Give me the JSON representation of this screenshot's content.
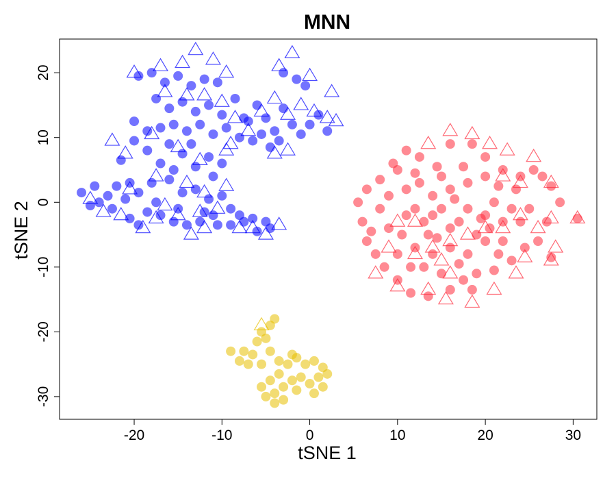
{
  "chart_data": {
    "type": "scatter",
    "title": "MNN",
    "xlabel": "tSNE 1",
    "ylabel": "tSNE 2",
    "xlim": [
      -28.5,
      32.7
    ],
    "ylim": [
      -33.5,
      25.2
    ],
    "xticks": [
      -20,
      -10,
      0,
      10,
      20,
      30
    ],
    "yticks": [
      20,
      10,
      0,
      -10,
      -20,
      -30
    ],
    "xtick_labels": [
      "-20",
      "-10",
      "0",
      "10",
      "20",
      "30"
    ],
    "ytick_labels": [
      "20",
      "10",
      "0",
      "-10",
      "-20",
      "-30"
    ],
    "grid": false,
    "legend": "none",
    "colors": {
      "blue": "#0000ff",
      "red": "#ff2a3a",
      "gold": "#e8c000"
    },
    "marker_shapes": [
      "circle",
      "triangle"
    ],
    "clusters": [
      {
        "color": "#0000ff",
        "circles": [
          [
            -26,
            1.5
          ],
          [
            -24.5,
            2.5
          ],
          [
            -23,
            1
          ],
          [
            -22.5,
            -1
          ],
          [
            -21,
            0.5
          ],
          [
            -20.5,
            -2.5
          ],
          [
            -19.5,
            -3.5
          ],
          [
            -18.5,
            -1.5
          ],
          [
            -17,
            -2
          ],
          [
            -15.5,
            -3
          ],
          [
            -14,
            -3.5
          ],
          [
            -12.5,
            -3
          ],
          [
            -11,
            -2
          ],
          [
            -9,
            -3.5
          ],
          [
            -7.5,
            -3
          ],
          [
            -6,
            -4.5
          ],
          [
            -4.5,
            -4
          ],
          [
            -19.5,
            1.5
          ],
          [
            -18,
            3
          ],
          [
            -16,
            3.5
          ],
          [
            -14.5,
            1.5
          ],
          [
            -13,
            2
          ],
          [
            -11.5,
            0.5
          ],
          [
            -10,
            1
          ],
          [
            -21.5,
            6.5
          ],
          [
            -20,
            9.5
          ],
          [
            -18.5,
            8
          ],
          [
            -17,
            6
          ],
          [
            -16,
            9
          ],
          [
            -14.5,
            7.5
          ],
          [
            -13,
            5.5
          ],
          [
            -11.5,
            7
          ],
          [
            -10,
            6
          ],
          [
            -19.5,
            19.5
          ],
          [
            -18,
            20
          ],
          [
            -16.5,
            18.5
          ],
          [
            -15,
            19.5
          ],
          [
            -13.5,
            18
          ],
          [
            -12,
            19
          ],
          [
            -10.5,
            18.5
          ],
          [
            -17.5,
            16
          ],
          [
            -16,
            14.5
          ],
          [
            -14.5,
            15.5
          ],
          [
            -13,
            14
          ],
          [
            -11.5,
            15
          ],
          [
            -10,
            13.5
          ],
          [
            -17,
            11.5
          ],
          [
            -15.5,
            12
          ],
          [
            -14,
            11
          ],
          [
            -12.5,
            12
          ],
          [
            -11,
            10.5
          ],
          [
            -9.5,
            11.5
          ],
          [
            -8,
            10
          ],
          [
            -7,
            12.5
          ],
          [
            -6,
            15
          ],
          [
            -5,
            13
          ],
          [
            -4,
            11
          ],
          [
            -3,
            14.5
          ],
          [
            -2,
            12
          ],
          [
            -1,
            10.5
          ],
          [
            0,
            12
          ],
          [
            1,
            13.5
          ],
          [
            2,
            11
          ],
          [
            -3,
            20
          ],
          [
            -1.5,
            19
          ],
          [
            -0.5,
            18
          ],
          [
            -8.5,
            16
          ],
          [
            -7.5,
            13
          ],
          [
            -6.5,
            9.5
          ],
          [
            -5.5,
            10.5
          ],
          [
            -4.5,
            8.5
          ],
          [
            -3.5,
            9.5
          ],
          [
            -9,
            -1
          ],
          [
            -8,
            -2
          ],
          [
            -24,
            0
          ],
          [
            -22,
            2.5
          ],
          [
            -20.5,
            3
          ],
          [
            -25,
            -0.5
          ],
          [
            -17.5,
            0
          ],
          [
            -15,
            -1
          ],
          [
            -12,
            -1.5
          ],
          [
            -10.5,
            -3.5
          ],
          [
            -6.5,
            -2.5
          ],
          [
            -5,
            -3
          ],
          [
            -13.5,
            9
          ],
          [
            -11,
            4
          ],
          [
            -15.5,
            5
          ],
          [
            -18.5,
            11
          ],
          [
            -20,
            12.5
          ]
        ],
        "triangles": [
          [
            -25,
            0.5
          ],
          [
            -23.5,
            -1.5
          ],
          [
            -21.5,
            -2
          ],
          [
            -19,
            -4
          ],
          [
            -17.5,
            -2.5
          ],
          [
            -15,
            -2
          ],
          [
            -13.5,
            -5
          ],
          [
            -12,
            -4
          ],
          [
            -10.5,
            -1
          ],
          [
            -8,
            -4
          ],
          [
            -6.5,
            -4
          ],
          [
            -5,
            -5
          ],
          [
            -3.5,
            -3.5
          ],
          [
            -20.5,
            2
          ],
          [
            -17.5,
            4
          ],
          [
            -14,
            3
          ],
          [
            -12,
            1.5
          ],
          [
            -9.5,
            2.5
          ],
          [
            -22.5,
            9.5
          ],
          [
            -21,
            7.5
          ],
          [
            -18,
            10.5
          ],
          [
            -15,
            8.5
          ],
          [
            -12.5,
            6.5
          ],
          [
            -9.5,
            8
          ],
          [
            -20,
            20
          ],
          [
            -17,
            21
          ],
          [
            -14.5,
            21.5
          ],
          [
            -13,
            23.5
          ],
          [
            -11,
            22
          ],
          [
            -9.5,
            20
          ],
          [
            -16.5,
            17
          ],
          [
            -14,
            16.5
          ],
          [
            -12,
            16.5
          ],
          [
            -10,
            15.5
          ],
          [
            -8.5,
            13
          ],
          [
            -7,
            11
          ],
          [
            -5.5,
            14
          ],
          [
            -4,
            16
          ],
          [
            -2.5,
            13.5
          ],
          [
            -1,
            15
          ],
          [
            0.5,
            14
          ],
          [
            2,
            13
          ],
          [
            3,
            12.5
          ],
          [
            -2,
            23
          ],
          [
            -3.5,
            21
          ],
          [
            0,
            19.5
          ],
          [
            2.5,
            17
          ],
          [
            -9,
            9
          ],
          [
            -4,
            7.5
          ],
          [
            -2.5,
            8
          ],
          [
            -12.5,
            -1.5
          ],
          [
            -16.5,
            -0.5
          ]
        ]
      },
      {
        "color": "#ff2a3a",
        "circles": [
          [
            10,
            5
          ],
          [
            11,
            8
          ],
          [
            12.5,
            7
          ],
          [
            14.5,
            5.5
          ],
          [
            16,
            9
          ],
          [
            18.5,
            9
          ],
          [
            20,
            7
          ],
          [
            22,
            5
          ],
          [
            24,
            4
          ],
          [
            25.5,
            5
          ],
          [
            26.5,
            4
          ],
          [
            27.5,
            2.5
          ],
          [
            28.5,
            0
          ],
          [
            27,
            -3
          ],
          [
            26,
            -6
          ],
          [
            24.5,
            -7
          ],
          [
            23,
            -9
          ],
          [
            21,
            -10.5
          ],
          [
            19,
            -11
          ],
          [
            17.5,
            -12
          ],
          [
            16,
            -13.5
          ],
          [
            13.5,
            -14.5
          ],
          [
            11.5,
            -14
          ],
          [
            10,
            -12
          ],
          [
            8.5,
            -10
          ],
          [
            7.5,
            -8
          ],
          [
            6.5,
            -6
          ],
          [
            6,
            -3
          ],
          [
            5.5,
            0
          ],
          [
            6.5,
            2
          ],
          [
            8,
            3.5
          ],
          [
            9.5,
            6
          ],
          [
            11,
            2
          ],
          [
            12,
            -1
          ],
          [
            13,
            -3
          ],
          [
            14,
            -2
          ],
          [
            15,
            -1
          ],
          [
            16,
            -4
          ],
          [
            17,
            -3
          ],
          [
            18,
            -1
          ],
          [
            19,
            -5
          ],
          [
            20,
            -2
          ],
          [
            21,
            0
          ],
          [
            22,
            -3
          ],
          [
            23,
            -1
          ],
          [
            12.5,
            3
          ],
          [
            14,
            1
          ],
          [
            16,
            2
          ],
          [
            18,
            3
          ],
          [
            20,
            4
          ],
          [
            10.5,
            -5
          ],
          [
            12,
            -7
          ],
          [
            14,
            -8
          ],
          [
            16,
            -7
          ],
          [
            18,
            -8
          ],
          [
            20,
            -6
          ],
          [
            22,
            -6
          ],
          [
            24,
            -3
          ],
          [
            25,
            -1
          ],
          [
            8,
            -1
          ],
          [
            9,
            -4
          ],
          [
            10,
            -8
          ],
          [
            13,
            -10
          ],
          [
            15,
            -11
          ],
          [
            17,
            -9.5
          ],
          [
            21.5,
            -8
          ],
          [
            23.5,
            2
          ],
          [
            30.5,
            -2.5
          ],
          [
            27.5,
            -8.5
          ],
          [
            12,
            4.5
          ],
          [
            15,
            4
          ],
          [
            17.5,
            5.5
          ],
          [
            9,
            1
          ],
          [
            11,
            -2
          ],
          [
            13.5,
            -5
          ],
          [
            19.5,
            -2.5
          ],
          [
            21.5,
            2.5
          ],
          [
            14.5,
            -5.5
          ],
          [
            16.5,
            0.5
          ],
          [
            11.5,
            -10
          ],
          [
            18.5,
            -13.5
          ],
          [
            20.5,
            -4
          ],
          [
            7,
            -4.5
          ]
        ],
        "triangles": [
          [
            13.5,
            9
          ],
          [
            16,
            11
          ],
          [
            18.5,
            10.5
          ],
          [
            20.5,
            9
          ],
          [
            22.5,
            8
          ],
          [
            25.5,
            7
          ],
          [
            27.5,
            3
          ],
          [
            27.5,
            -2.5
          ],
          [
            28,
            -7
          ],
          [
            27.5,
            -9
          ],
          [
            24.5,
            -8.5
          ],
          [
            23.5,
            -11
          ],
          [
            21,
            -13.5
          ],
          [
            18.5,
            -15.5
          ],
          [
            15.5,
            -15
          ],
          [
            13.5,
            -13.5
          ],
          [
            10,
            -13
          ],
          [
            7.5,
            -11
          ],
          [
            15,
            -9
          ],
          [
            12,
            -8
          ],
          [
            14,
            -7
          ],
          [
            16,
            -6
          ],
          [
            18,
            -5
          ],
          [
            20,
            -4
          ],
          [
            22,
            -4
          ],
          [
            24,
            -2
          ],
          [
            10,
            -3
          ],
          [
            12,
            -3
          ],
          [
            26,
            -4
          ],
          [
            30.5,
            -2.5
          ],
          [
            24,
            3
          ],
          [
            22,
            4
          ],
          [
            9,
            -7
          ],
          [
            16,
            -11
          ]
        ]
      },
      {
        "color": "#e8c000",
        "circles": [
          [
            -9,
            -23
          ],
          [
            -8,
            -24.5
          ],
          [
            -7,
            -25
          ],
          [
            -6.5,
            -23.5
          ],
          [
            -6,
            -21.5
          ],
          [
            -5.5,
            -20
          ],
          [
            -4.5,
            -19
          ],
          [
            -4,
            -18
          ],
          [
            -5,
            -21
          ],
          [
            -4.5,
            -23
          ],
          [
            -3.5,
            -24.5
          ],
          [
            -2.5,
            -25
          ],
          [
            -1.5,
            -24
          ],
          [
            -0.5,
            -25
          ],
          [
            0.5,
            -24.5
          ],
          [
            1.5,
            -25.5
          ],
          [
            1,
            -27
          ],
          [
            0,
            -28
          ],
          [
            -1,
            -27
          ],
          [
            -2,
            -27.5
          ],
          [
            -3,
            -28.5
          ],
          [
            -4,
            -29.5
          ],
          [
            -5,
            -30
          ],
          [
            -5.5,
            -28.5
          ],
          [
            -4,
            -31
          ],
          [
            -3,
            -30.5
          ],
          [
            -5.5,
            -25
          ],
          [
            -3.5,
            -26.5
          ],
          [
            -1.5,
            -29
          ],
          [
            0.5,
            -29.5
          ],
          [
            1.5,
            -28.5
          ],
          [
            2,
            -26.5
          ],
          [
            -7.5,
            -23
          ],
          [
            -2,
            -23.5
          ],
          [
            -4.5,
            -27.5
          ]
        ],
        "triangles": [
          [
            -5.5,
            -19
          ]
        ]
      }
    ]
  }
}
